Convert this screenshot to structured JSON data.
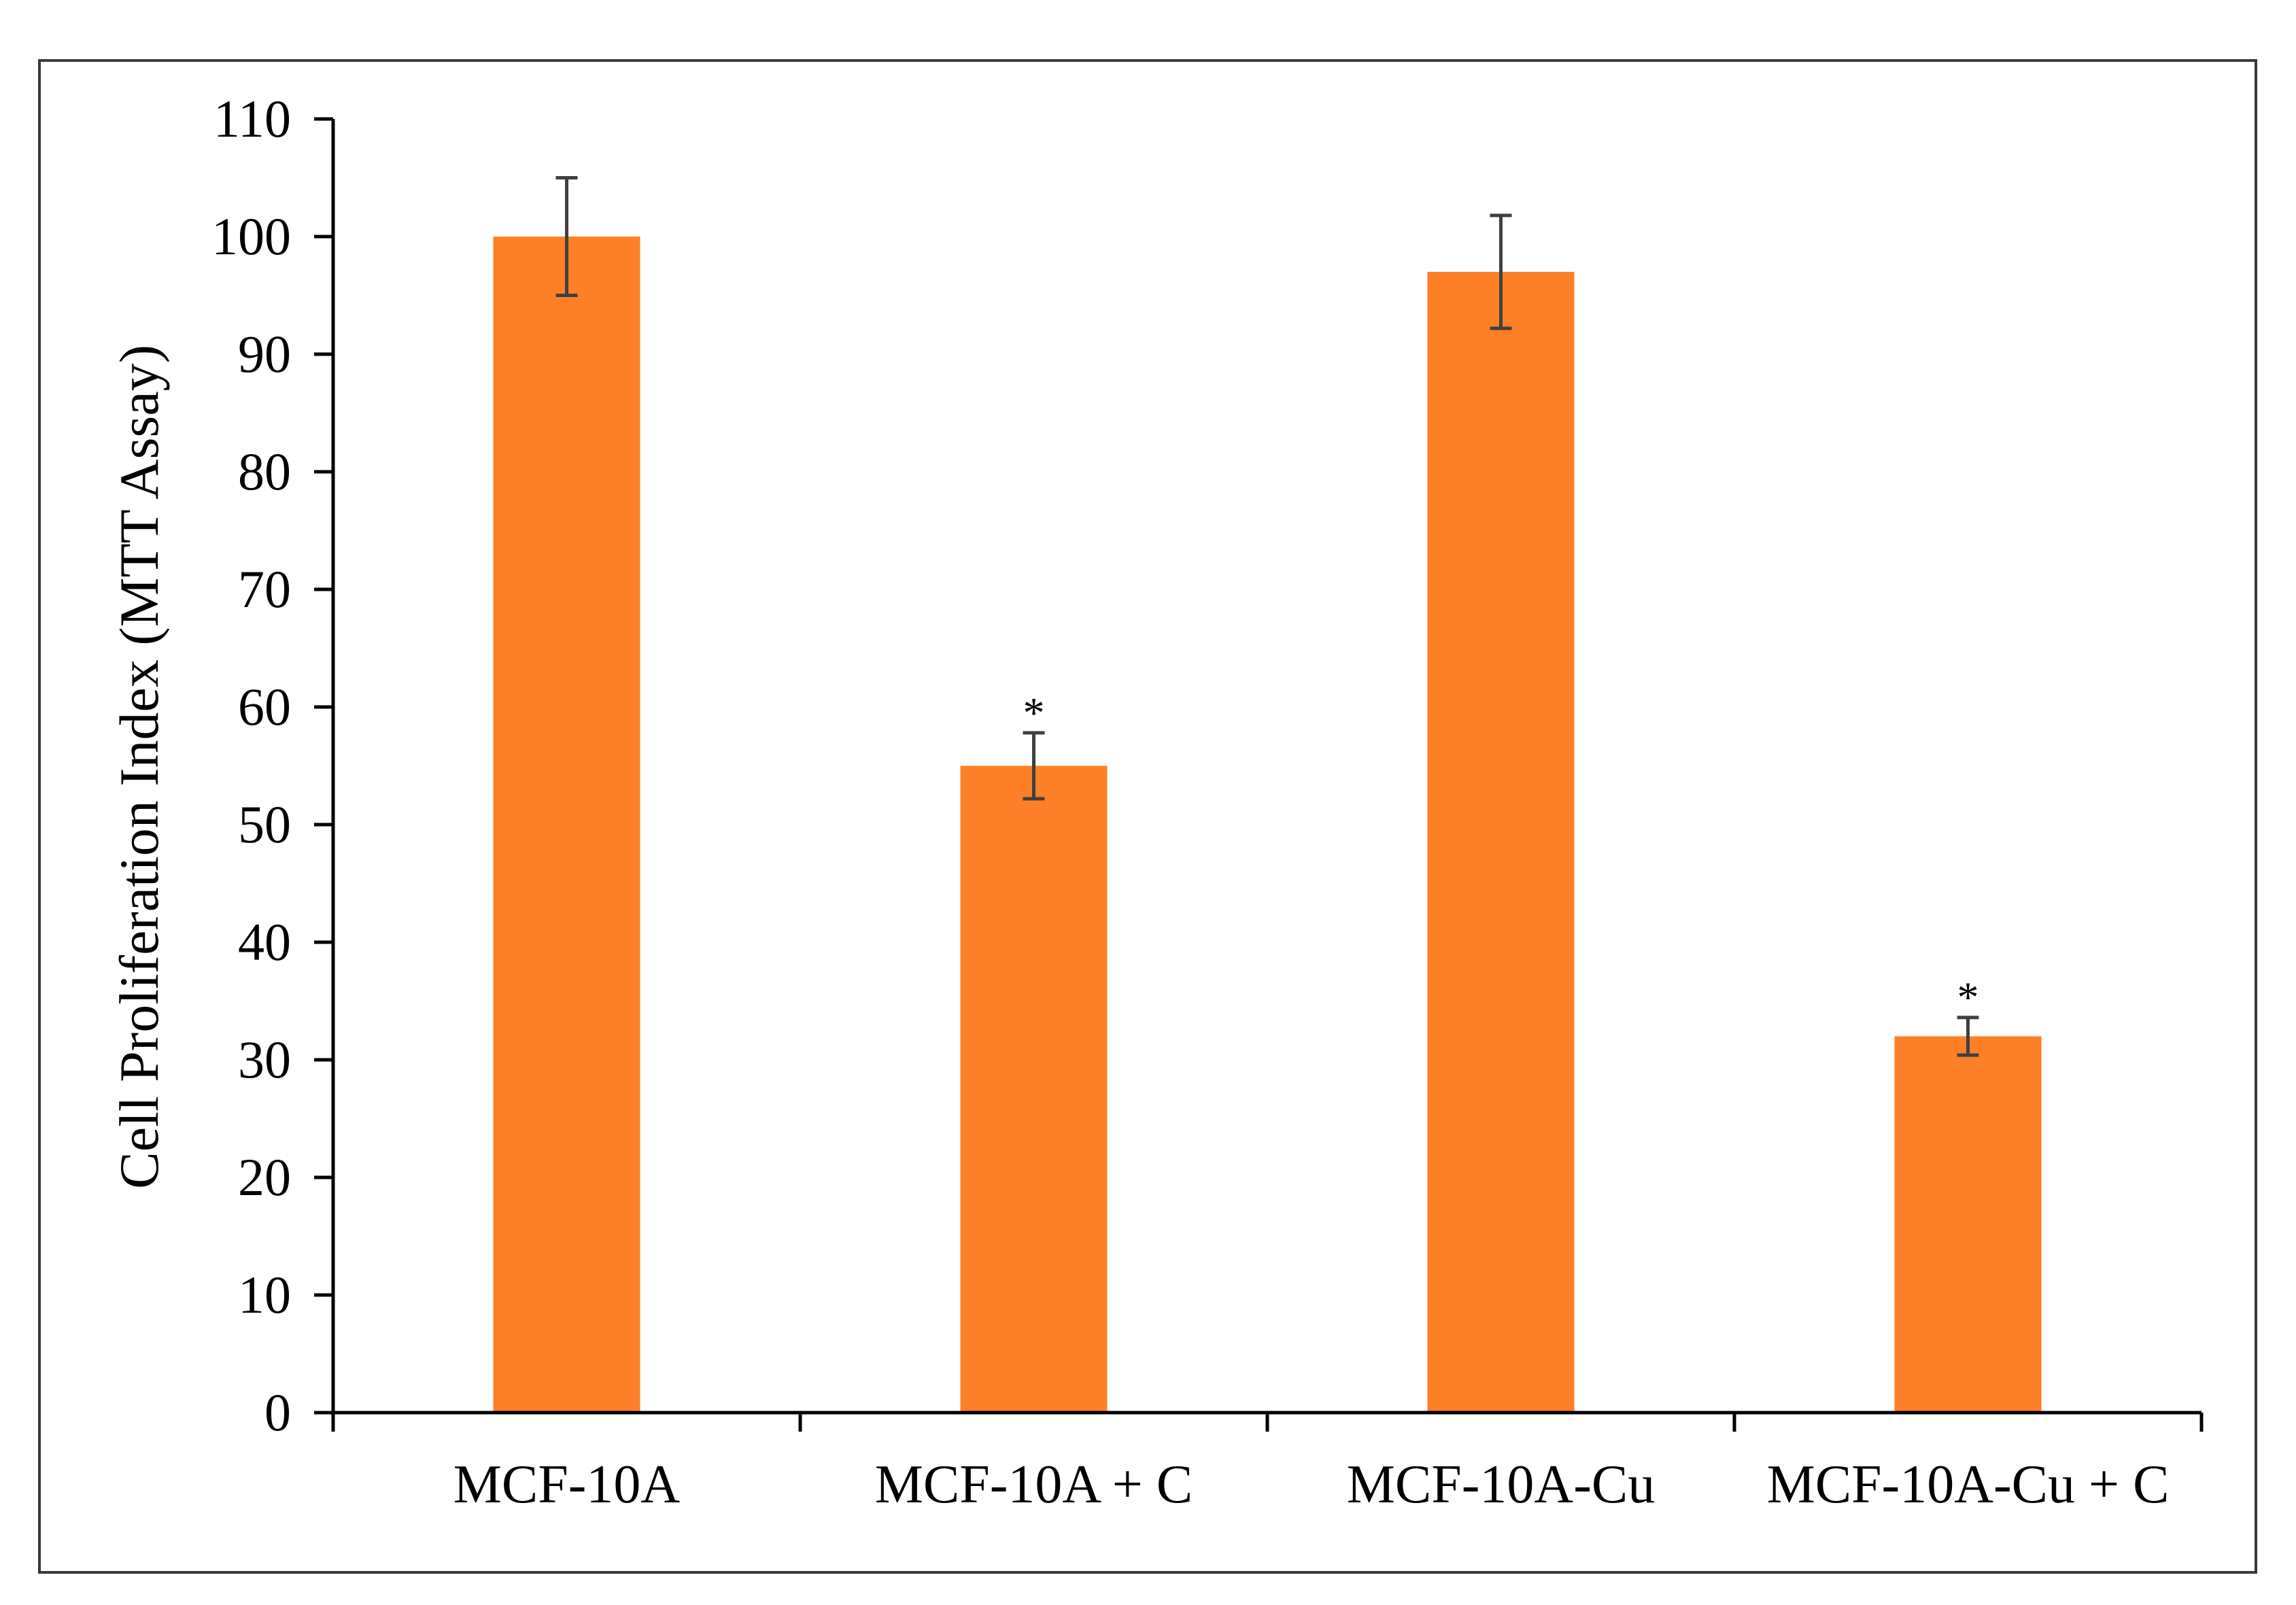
{
  "chart_data": {
    "type": "bar",
    "title": "",
    "xlabel": "",
    "ylabel": "Cell Proliferation Index (MTT Assay)",
    "ylim": [
      0,
      110
    ],
    "yticks": [
      0,
      10,
      20,
      30,
      40,
      50,
      60,
      70,
      80,
      90,
      100,
      110
    ],
    "grid": false,
    "legend": "none",
    "categories": [
      "MCF-10A",
      "MCF-10A + C",
      "MCF-10A-Cu",
      "MCF-10A-Cu + C"
    ],
    "values": [
      100,
      55,
      97,
      32
    ],
    "errors": [
      5,
      2.8,
      4.8,
      1.6
    ],
    "annotations": [
      "",
      "*",
      "",
      "*"
    ],
    "colors": {
      "bar": "#FD7F28",
      "axis": "#000000",
      "error_bar": "#404040"
    }
  }
}
